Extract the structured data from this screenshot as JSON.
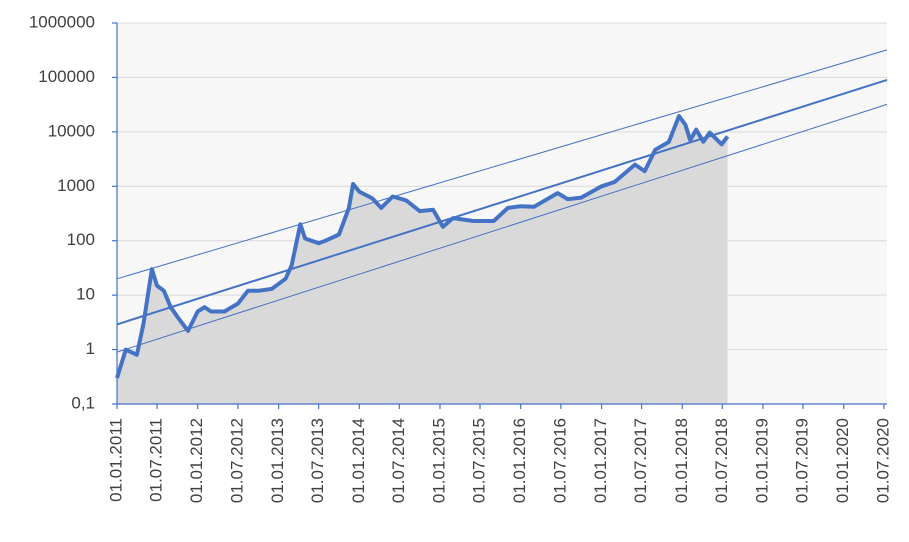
{
  "chart_data": {
    "type": "line",
    "yscale": "log",
    "grid": true,
    "xlim": [
      "2011-01-01",
      "2020-07-15"
    ],
    "xticks": [
      {
        "value": "2011-01-01",
        "label": "01.01.2011"
      },
      {
        "value": "2011-07-01",
        "label": "01.07.2011"
      },
      {
        "value": "2012-01-01",
        "label": "01.01.2012"
      },
      {
        "value": "2012-07-01",
        "label": "01.07.2012"
      },
      {
        "value": "2013-01-01",
        "label": "01.01.2013"
      },
      {
        "value": "2013-07-01",
        "label": "01.07.2013"
      },
      {
        "value": "2014-01-01",
        "label": "01.01.2014"
      },
      {
        "value": "2014-07-01",
        "label": "01.07.2014"
      },
      {
        "value": "2015-01-01",
        "label": "01.01.2015"
      },
      {
        "value": "2015-07-01",
        "label": "01.07.2015"
      },
      {
        "value": "2016-01-01",
        "label": "01.01.2016"
      },
      {
        "value": "2016-07-01",
        "label": "01.07.2016"
      },
      {
        "value": "2017-01-01",
        "label": "01.01.2017"
      },
      {
        "value": "2017-07-01",
        "label": "01.07.2017"
      },
      {
        "value": "2018-01-01",
        "label": "01.01.2018"
      },
      {
        "value": "2018-07-01",
        "label": "01.07.2018"
      },
      {
        "value": "2019-01-01",
        "label": "01.01.2019"
      },
      {
        "value": "2019-07-01",
        "label": "01.07.2019"
      },
      {
        "value": "2020-01-01",
        "label": "01.01.2020"
      },
      {
        "value": "2020-07-01",
        "label": "01.07.2020"
      }
    ],
    "ylim": [
      0.1,
      1000000
    ],
    "yticks": [
      {
        "value": 0.1,
        "label": "0,1"
      },
      1,
      10,
      100,
      1000,
      10000,
      100000,
      1000000
    ],
    "series": [
      {
        "color": "#4472c4",
        "area": true,
        "x": [
          "2011-01-01",
          "2011-02-10",
          "2011-04-01",
          "2011-05-01",
          "2011-06-08",
          "2011-07-01",
          "2011-08-01",
          "2011-09-01",
          "2011-10-01",
          "2011-11-18",
          "2012-01-01",
          "2012-02-01",
          "2012-03-01",
          "2012-05-01",
          "2012-07-01",
          "2012-08-15",
          "2012-10-01",
          "2012-12-01",
          "2013-02-01",
          "2013-03-01",
          "2013-04-09",
          "2013-05-01",
          "2013-07-01",
          "2013-08-01",
          "2013-10-01",
          "2013-11-15",
          "2013-12-04",
          "2014-01-01",
          "2014-03-01",
          "2014-04-10",
          "2014-06-01",
          "2014-08-01",
          "2014-10-01",
          "2014-12-01",
          "2015-01-14",
          "2015-03-01",
          "2015-06-01",
          "2015-09-01",
          "2015-11-04",
          "2016-01-01",
          "2016-03-01",
          "2016-06-16",
          "2016-08-01",
          "2016-10-01",
          "2017-01-01",
          "2017-03-01",
          "2017-06-01",
          "2017-07-15",
          "2017-09-01",
          "2017-11-01",
          "2017-12-17",
          "2018-01-15",
          "2018-02-06",
          "2018-03-05",
          "2018-04-06",
          "2018-05-05",
          "2018-06-28",
          "2018-07-25"
        ],
        "values": [
          0.3,
          1.0,
          0.8,
          3,
          30,
          15,
          12,
          6,
          4,
          2.2,
          5,
          6,
          5,
          5,
          7,
          12,
          12,
          13,
          20,
          35,
          200,
          110,
          90,
          100,
          130,
          400,
          1100,
          800,
          600,
          400,
          650,
          550,
          350,
          370,
          180,
          260,
          230,
          230,
          400,
          430,
          420,
          750,
          580,
          620,
          1000,
          1200,
          2500,
          1900,
          4700,
          6500,
          19500,
          13500,
          7000,
          11000,
          6600,
          9700,
          5900,
          8200
        ]
      },
      {
        "color": "#4472c4",
        "x": [
          "2011-01-01",
          "2020-07-15"
        ],
        "values": [
          2.9,
          90000
        ]
      },
      {
        "color": "#4472c4",
        "x": [
          "2011-01-01",
          "2020-07-15"
        ],
        "values": [
          20,
          320000
        ]
      },
      {
        "color": "#4472c4",
        "x": [
          "2011-01-01",
          "2020-07-15"
        ],
        "values": [
          0.9,
          32000
        ]
      }
    ]
  }
}
